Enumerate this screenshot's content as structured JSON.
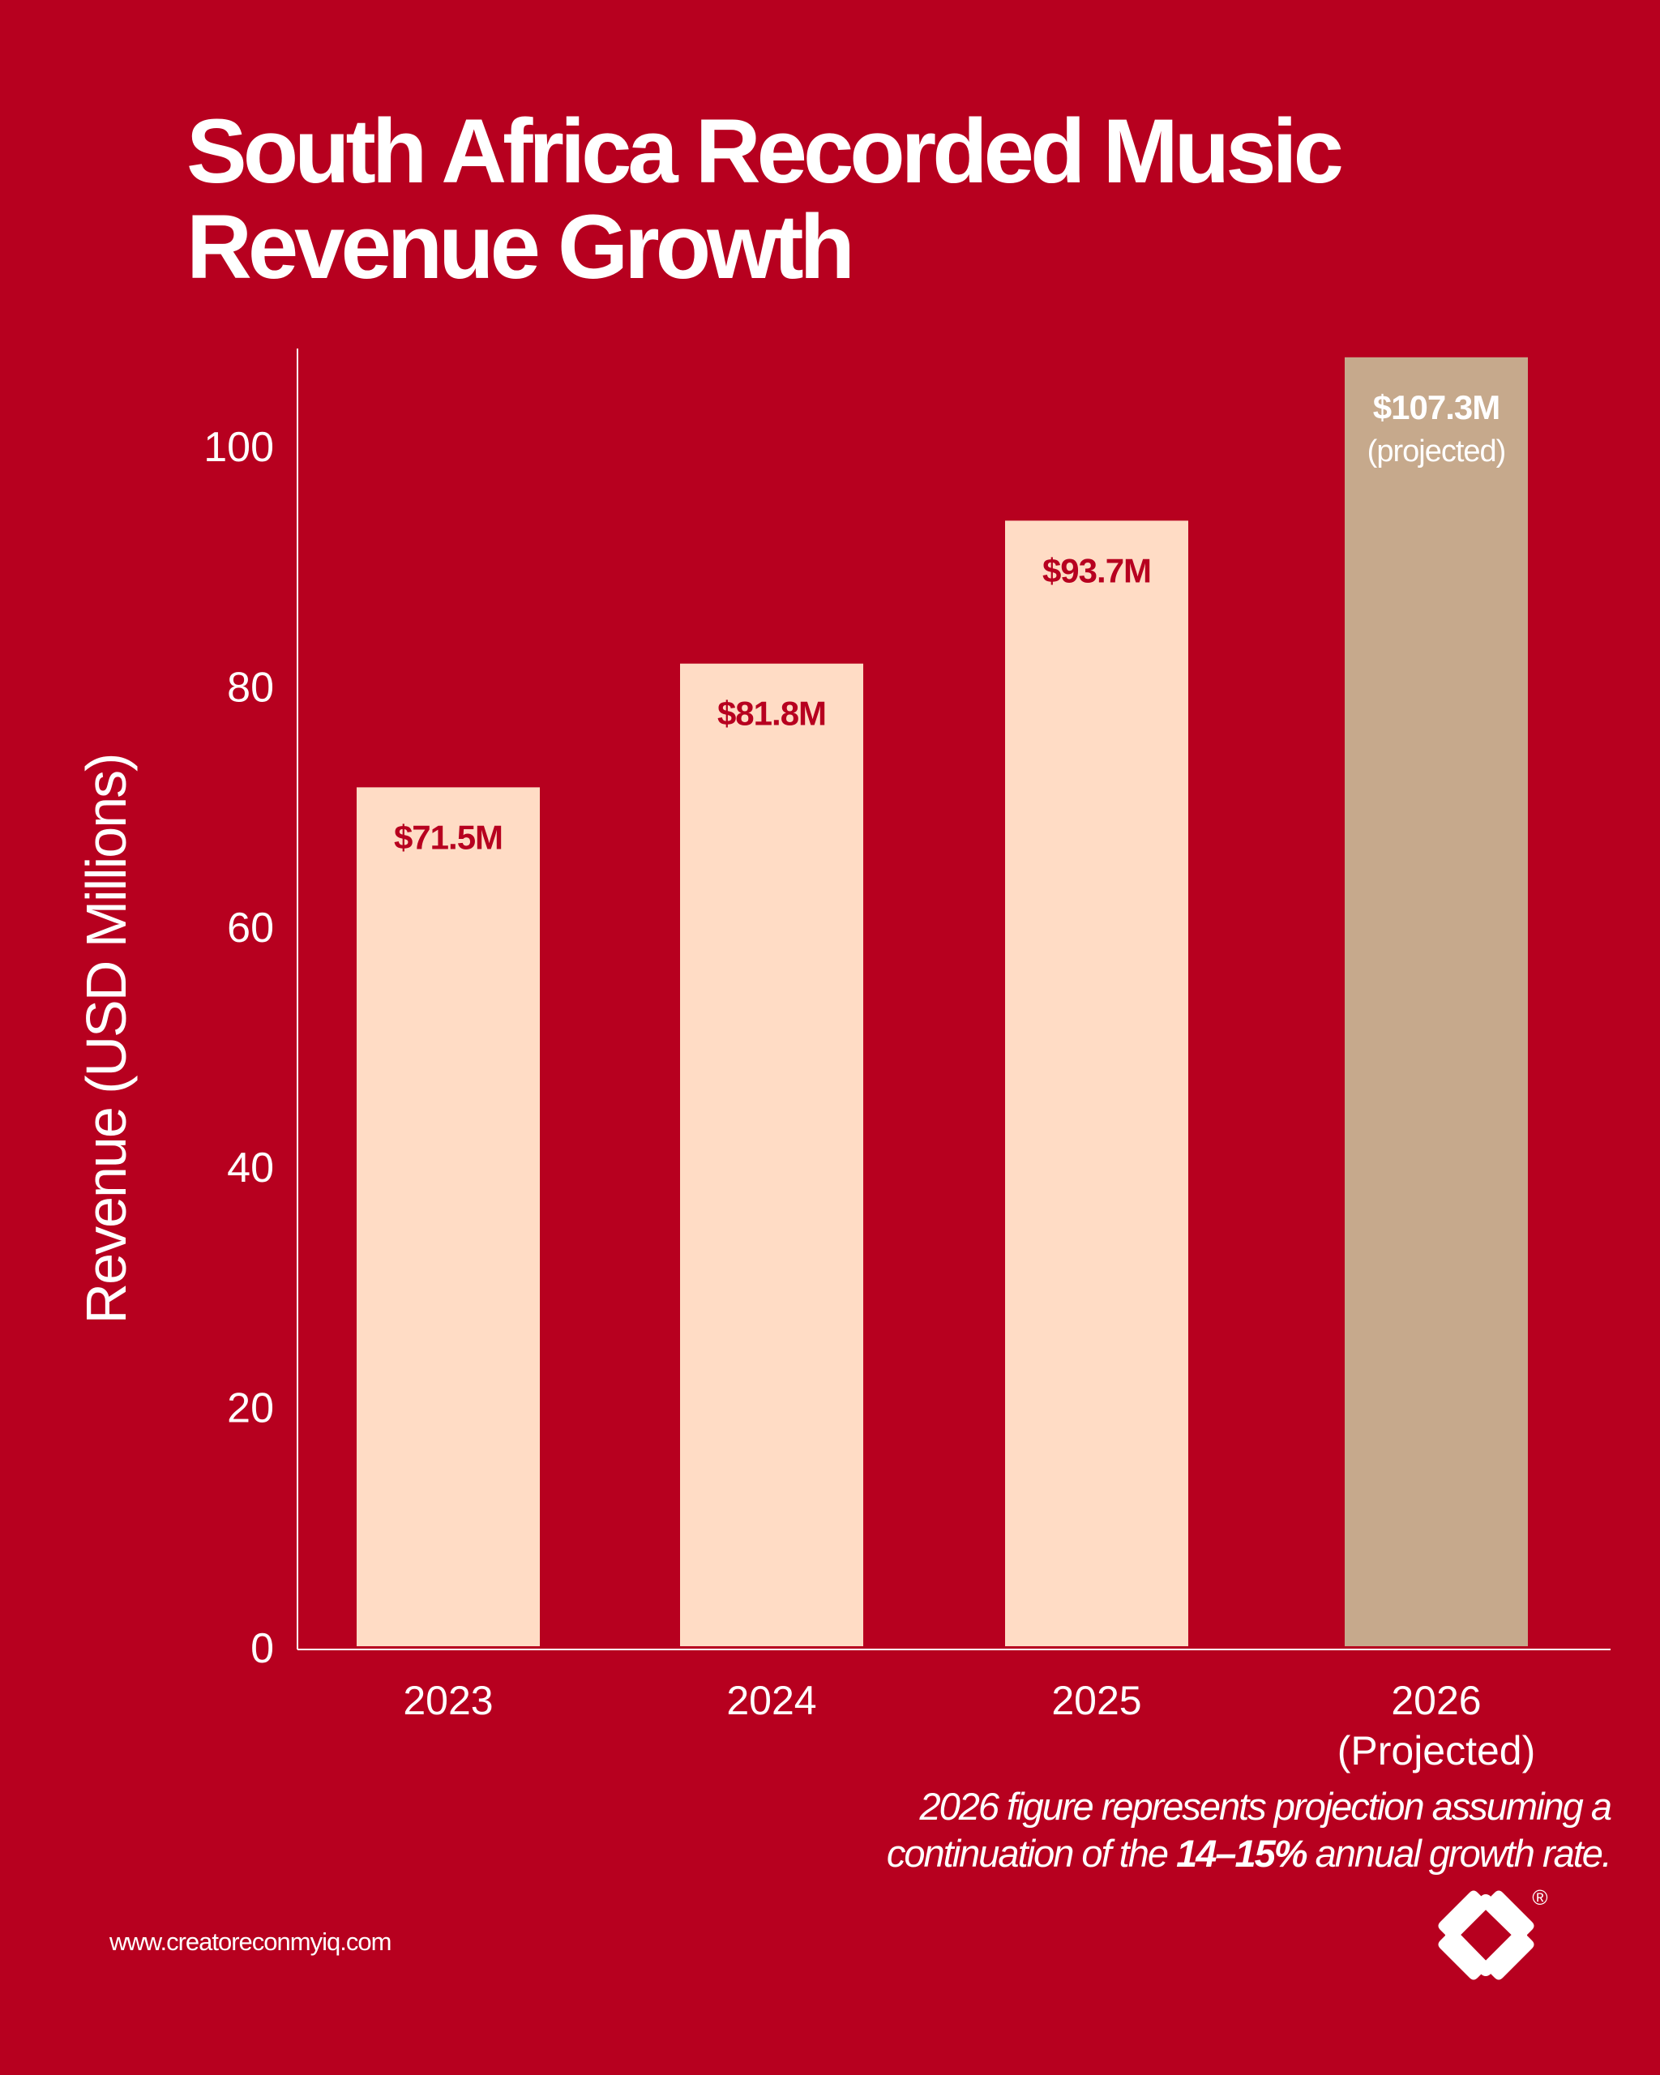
{
  "colors": {
    "background": "#b7001f",
    "bar": "#ffdcc5",
    "bar_projected": "#c6a98c",
    "axis": "#ffffff",
    "label_on_bar": "#b7001f"
  },
  "chart_data": {
    "type": "bar",
    "title": "South Africa Recorded Music Revenue Growth",
    "title_lines": [
      "South Africa Recorded Music",
      "Revenue Growth"
    ],
    "xlabel": "",
    "ylabel": "Revenue (USD Millions)",
    "ylim": [
      0,
      108
    ],
    "yticks": [
      0,
      20,
      40,
      60,
      80,
      100
    ],
    "grid": false,
    "categories": [
      [
        "2023"
      ],
      [
        "2024"
      ],
      [
        "2025"
      ],
      [
        "2026",
        "(Projected)"
      ]
    ],
    "values": [
      71.5,
      81.8,
      93.7,
      107.3
    ],
    "projected": [
      false,
      false,
      false,
      true
    ],
    "data_labels": [
      [
        "$71.5M"
      ],
      [
        "$81.8M"
      ],
      [
        "$93.7M"
      ],
      [
        "$107.3M",
        "(projected)"
      ]
    ]
  },
  "footnote": {
    "line1": "2026 figure represents projection assuming a",
    "line2_pre": "continuation of the ",
    "line2_bold": "14–15%",
    "line2_post": " annual growth rate."
  },
  "website": "www.creatoreconmyiq.com",
  "logo": {
    "icon": "diamond-logo-icon",
    "registered_mark": "®"
  }
}
